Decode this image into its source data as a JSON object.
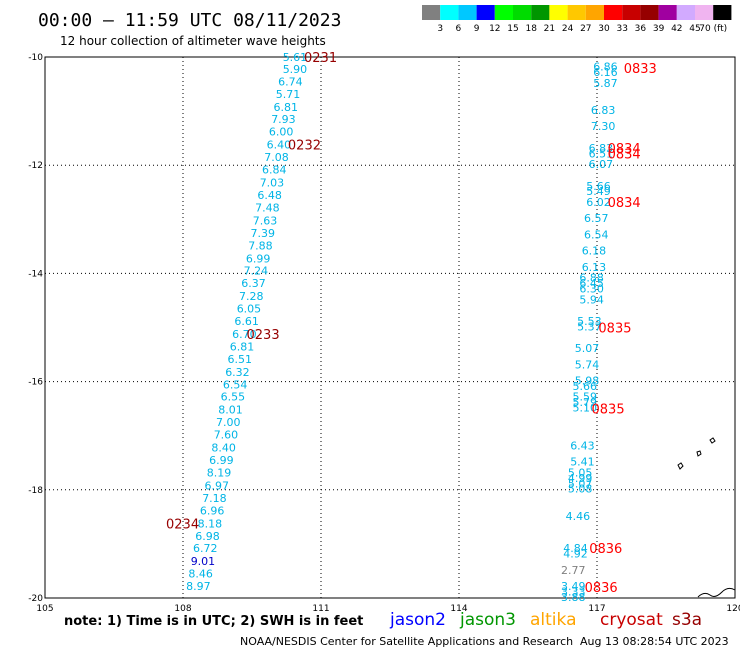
{
  "header": {
    "title": "00:00 – 11:59 UTC 08/11/2023",
    "subtitle": "12 hour collection of altimeter wave heights"
  },
  "legend": {
    "colors": [
      "#808080",
      "#00ffff",
      "#00c8ff",
      "#0000ff",
      "#00ff00",
      "#00dc00",
      "#009600",
      "#ffff00",
      "#ffc800",
      "#ffa500",
      "#ff0000",
      "#c80000",
      "#960000",
      "#a000a0",
      "#d2aaff",
      "#f0b4f0",
      "#000000"
    ],
    "labels": [
      "3",
      "6",
      "9",
      "12",
      "15",
      "18",
      "21",
      "24",
      "27",
      "30",
      "33",
      "36",
      "39",
      "42",
      "45",
      "70 (ft)"
    ]
  },
  "footer": {
    "note": "note:  1) Time is in UTC; 2) SWH is in feet",
    "sat_jason2": "jason2",
    "sat_jason3": "jason3",
    "sat_altika": "altika",
    "sat_cryosat": "cryosat",
    "sat_s3a": "s3a",
    "credit": "NOAA/NESDIS Center for Satellite Applications and Research",
    "timestamp": "Aug 13 08:28:54 UTC 2023"
  },
  "chart_data": {
    "type": "scatter",
    "xlim": [
      105,
      120
    ],
    "ylim": [
      -20,
      -10
    ],
    "xticks": [
      105,
      108,
      111,
      114,
      117,
      120
    ],
    "xtick_labels": [
      "105",
      "108",
      "111",
      "114",
      "117",
      "120"
    ],
    "yticks": [
      -10,
      -12,
      -14,
      -16,
      -18,
      -20
    ],
    "ytick_labels": [
      "-10",
      "-12",
      "-14",
      "-16",
      "-18",
      "-20"
    ],
    "grid": true,
    "track_a": [
      {
        "x": 110.7,
        "y": -10.0,
        "v": "5.61"
      },
      {
        "x": 110.7,
        "y": -10.22,
        "v": "5.90"
      },
      {
        "x": 110.6,
        "y": -10.45,
        "v": "6.74"
      },
      {
        "x": 110.55,
        "y": -10.68,
        "v": "5.71"
      },
      {
        "x": 110.5,
        "y": -10.92,
        "v": "6.81"
      },
      {
        "x": 110.45,
        "y": -11.15,
        "v": "7.93"
      },
      {
        "x": 110.4,
        "y": -11.38,
        "v": "6.00"
      },
      {
        "x": 110.35,
        "y": -11.62,
        "v": "6.40"
      },
      {
        "x": 110.3,
        "y": -11.85,
        "v": "7.08"
      },
      {
        "x": 110.25,
        "y": -12.08,
        "v": "6.84"
      },
      {
        "x": 110.2,
        "y": -12.32,
        "v": "7.03"
      },
      {
        "x": 110.15,
        "y": -12.55,
        "v": "6.48"
      },
      {
        "x": 110.1,
        "y": -12.78,
        "v": "7.48"
      },
      {
        "x": 110.05,
        "y": -13.02,
        "v": "7.63"
      },
      {
        "x": 110.0,
        "y": -13.25,
        "v": "7.39"
      },
      {
        "x": 109.95,
        "y": -13.48,
        "v": "7.88"
      },
      {
        "x": 109.9,
        "y": -13.72,
        "v": "6.99"
      },
      {
        "x": 109.85,
        "y": -13.95,
        "v": "7.24"
      },
      {
        "x": 109.8,
        "y": -14.18,
        "v": "6.37"
      },
      {
        "x": 109.75,
        "y": -14.42,
        "v": "7.28"
      },
      {
        "x": 109.7,
        "y": -14.65,
        "v": "6.05"
      },
      {
        "x": 109.65,
        "y": -14.88,
        "v": "6.61"
      },
      {
        "x": 109.6,
        "y": -15.12,
        "v": "6.70"
      },
      {
        "x": 109.55,
        "y": -15.35,
        "v": "6.81"
      },
      {
        "x": 109.5,
        "y": -15.58,
        "v": "6.51"
      },
      {
        "x": 109.45,
        "y": -15.82,
        "v": "6.32"
      },
      {
        "x": 109.4,
        "y": -16.05,
        "v": "6.54"
      },
      {
        "x": 109.35,
        "y": -16.28,
        "v": "6.55"
      },
      {
        "x": 109.3,
        "y": -16.52,
        "v": "8.01"
      },
      {
        "x": 109.25,
        "y": -16.75,
        "v": "7.00"
      },
      {
        "x": 109.2,
        "y": -16.98,
        "v": "7.60"
      },
      {
        "x": 109.15,
        "y": -17.22,
        "v": "8.40"
      },
      {
        "x": 109.1,
        "y": -17.45,
        "v": "6.99"
      },
      {
        "x": 109.05,
        "y": -17.68,
        "v": "8.19"
      },
      {
        "x": 109.0,
        "y": -17.92,
        "v": "6.97"
      },
      {
        "x": 108.95,
        "y": -18.15,
        "v": "7.18"
      },
      {
        "x": 108.9,
        "y": -18.38,
        "v": "6.96"
      },
      {
        "x": 108.85,
        "y": -18.62,
        "v": "8.18"
      },
      {
        "x": 108.8,
        "y": -18.85,
        "v": "6.98"
      },
      {
        "x": 108.75,
        "y": -19.08,
        "v": "6.72"
      },
      {
        "x": 108.7,
        "y": -19.32,
        "v": "9.01",
        "c": "#0000c8"
      },
      {
        "x": 108.65,
        "y": -19.55,
        "v": "8.46"
      },
      {
        "x": 108.6,
        "y": -19.78,
        "v": "8.97"
      }
    ],
    "track_b": [
      {
        "x": 117.45,
        "y": -10.18,
        "v": "6.86"
      },
      {
        "x": 117.45,
        "y": -10.28,
        "v": "6.16"
      },
      {
        "x": 117.45,
        "y": -10.48,
        "v": "5.87"
      },
      {
        "x": 117.4,
        "y": -10.98,
        "v": "6.83"
      },
      {
        "x": 117.4,
        "y": -11.28,
        "v": "7.30"
      },
      {
        "x": 117.35,
        "y": -11.68,
        "v": "6.83"
      },
      {
        "x": 117.35,
        "y": -11.78,
        "v": "6.51"
      },
      {
        "x": 117.35,
        "y": -11.98,
        "v": "6.07"
      },
      {
        "x": 117.3,
        "y": -12.38,
        "v": "5.66"
      },
      {
        "x": 117.3,
        "y": -12.48,
        "v": "5.49"
      },
      {
        "x": 117.3,
        "y": -12.68,
        "v": "6.02"
      },
      {
        "x": 117.25,
        "y": -12.98,
        "v": "6.57"
      },
      {
        "x": 117.25,
        "y": -13.28,
        "v": "6.54"
      },
      {
        "x": 117.2,
        "y": -13.58,
        "v": "6.18"
      },
      {
        "x": 117.2,
        "y": -13.88,
        "v": "6.13"
      },
      {
        "x": 117.15,
        "y": -14.08,
        "v": "6.88"
      },
      {
        "x": 117.15,
        "y": -14.18,
        "v": "6.45"
      },
      {
        "x": 117.15,
        "y": -14.28,
        "v": "6.30"
      },
      {
        "x": 117.15,
        "y": -14.48,
        "v": "5.94"
      },
      {
        "x": 117.1,
        "y": -14.88,
        "v": "5.53"
      },
      {
        "x": 117.1,
        "y": -14.98,
        "v": "5.37"
      },
      {
        "x": 117.05,
        "y": -15.38,
        "v": "5.07"
      },
      {
        "x": 117.05,
        "y": -15.68,
        "v": "5.74"
      },
      {
        "x": 117.05,
        "y": -15.98,
        "v": "5.98"
      },
      {
        "x": 117.0,
        "y": -16.08,
        "v": "5.66"
      },
      {
        "x": 117.0,
        "y": -16.28,
        "v": "5.59"
      },
      {
        "x": 117.0,
        "y": -16.38,
        "v": "5.79"
      },
      {
        "x": 117.0,
        "y": -16.48,
        "v": "5.10"
      },
      {
        "x": 116.95,
        "y": -17.18,
        "v": "6.43"
      },
      {
        "x": 116.95,
        "y": -17.48,
        "v": "5.41"
      },
      {
        "x": 116.9,
        "y": -17.68,
        "v": "5.05"
      },
      {
        "x": 116.9,
        "y": -17.78,
        "v": "4.99"
      },
      {
        "x": 116.9,
        "y": -17.88,
        "v": "5.07"
      },
      {
        "x": 116.9,
        "y": -17.98,
        "v": "5.08"
      },
      {
        "x": 116.85,
        "y": -18.48,
        "v": "4.46"
      },
      {
        "x": 116.8,
        "y": -19.08,
        "v": "4.84"
      },
      {
        "x": 116.8,
        "y": -19.18,
        "v": "4.92"
      },
      {
        "x": 116.75,
        "y": -19.48,
        "v": "2.77",
        "c": "#808080"
      },
      {
        "x": 116.75,
        "y": -19.78,
        "v": "3.49"
      },
      {
        "x": 116.75,
        "y": -19.88,
        "v": "3.33"
      },
      {
        "x": 116.75,
        "y": -19.98,
        "v": "3.88"
      }
    ],
    "times_a": [
      {
        "x": 111.35,
        "y": -10.0,
        "v": "0231"
      },
      {
        "x": 111.0,
        "y": -11.62,
        "v": "0232"
      },
      {
        "x": 110.1,
        "y": -15.12,
        "v": "0233"
      },
      {
        "x": 108.35,
        "y": -18.62,
        "v": "0234"
      }
    ],
    "times_b": [
      {
        "x": 118.3,
        "y": -10.2,
        "v": "0833"
      },
      {
        "x": 117.95,
        "y": -11.68,
        "v": "0834"
      },
      {
        "x": 117.95,
        "y": -11.78,
        "v": "0834"
      },
      {
        "x": 117.95,
        "y": -12.68,
        "v": "0834"
      },
      {
        "x": 117.75,
        "y": -15.0,
        "v": "0835"
      },
      {
        "x": 117.6,
        "y": -16.5,
        "v": "0835"
      },
      {
        "x": 117.55,
        "y": -19.08,
        "v": "0836"
      },
      {
        "x": 117.45,
        "y": -19.8,
        "v": "0836"
      }
    ]
  }
}
